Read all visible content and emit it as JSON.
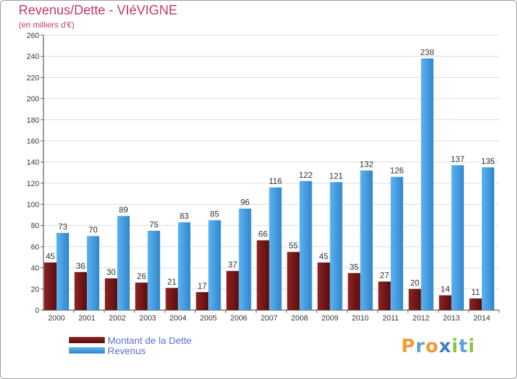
{
  "title": "Revenus/Dette - VIéVIGNE",
  "subtitle": "(en milliers d'€)",
  "logo": {
    "letters": [
      "P",
      "r",
      "o",
      "x",
      "i",
      "t",
      "i"
    ],
    "colors": [
      "#f29a2e",
      "#5ba3d9",
      "#f29a2e",
      "#3a7fc4",
      "#8cc540",
      "#5ba3d9",
      "#8cc540"
    ]
  },
  "chart_data": {
    "type": "bar",
    "title": "Revenus/Dette - VIéVIGNE",
    "ylabel": "(en milliers d'€)",
    "xlabel": "",
    "categories": [
      "2000",
      "2001",
      "2002",
      "2003",
      "2004",
      "2005",
      "2006",
      "2007",
      "2008",
      "2009",
      "2010",
      "2011",
      "2012",
      "2013",
      "2014"
    ],
    "series": [
      {
        "name": "Montant de la Dette",
        "color": "#7a1a1a",
        "values": [
          45,
          36,
          30,
          26,
          21,
          17,
          37,
          66,
          55,
          45,
          35,
          27,
          20,
          14,
          11
        ]
      },
      {
        "name": "Revenus",
        "color": "#4aa3e6",
        "values": [
          73,
          70,
          89,
          75,
          83,
          85,
          96,
          116,
          122,
          121,
          132,
          126,
          238,
          137,
          135
        ]
      }
    ],
    "ylim": [
      0,
      260
    ],
    "yticks": [
      0,
      20,
      40,
      60,
      80,
      100,
      120,
      140,
      160,
      180,
      200,
      220,
      240,
      260
    ],
    "grid": true,
    "legend": "bottom-left"
  }
}
